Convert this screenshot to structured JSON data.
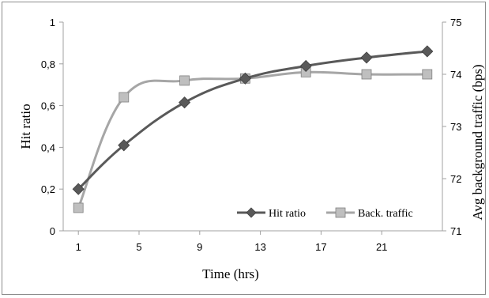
{
  "chart_data": {
    "type": "line",
    "title": "",
    "xlabel": "Time (hrs)",
    "ylabel": "Hit ratio",
    "y2label": "Avg background traffic (bps)",
    "x_ticks": [
      "1",
      "5",
      "9",
      "13",
      "17",
      "21"
    ],
    "y_ticks": [
      "0",
      "0,2",
      "0,4",
      "0,6",
      "0,8",
      "1"
    ],
    "y2_ticks": [
      "71",
      "72",
      "73",
      "74",
      "75"
    ],
    "xlim": [
      0,
      25
    ],
    "ylim": [
      0,
      1
    ],
    "y2lim": [
      71,
      75
    ],
    "grid": false,
    "legend_position": "bottom-right",
    "series": [
      {
        "name": "Hit ratio",
        "axis": "left",
        "marker": "diamond",
        "color": "#595959",
        "x": [
          1,
          4,
          8,
          12,
          16,
          20,
          24
        ],
        "y": [
          0.2,
          0.41,
          0.615,
          0.73,
          0.79,
          0.83,
          0.86
        ]
      },
      {
        "name": "Back. traffic",
        "axis": "right",
        "marker": "square",
        "color": "#a6a6a6",
        "x": [
          1,
          4,
          8,
          12,
          16,
          20,
          24
        ],
        "y": [
          71.44,
          73.56,
          73.88,
          73.92,
          74.04,
          74.0,
          74.0
        ]
      }
    ]
  }
}
